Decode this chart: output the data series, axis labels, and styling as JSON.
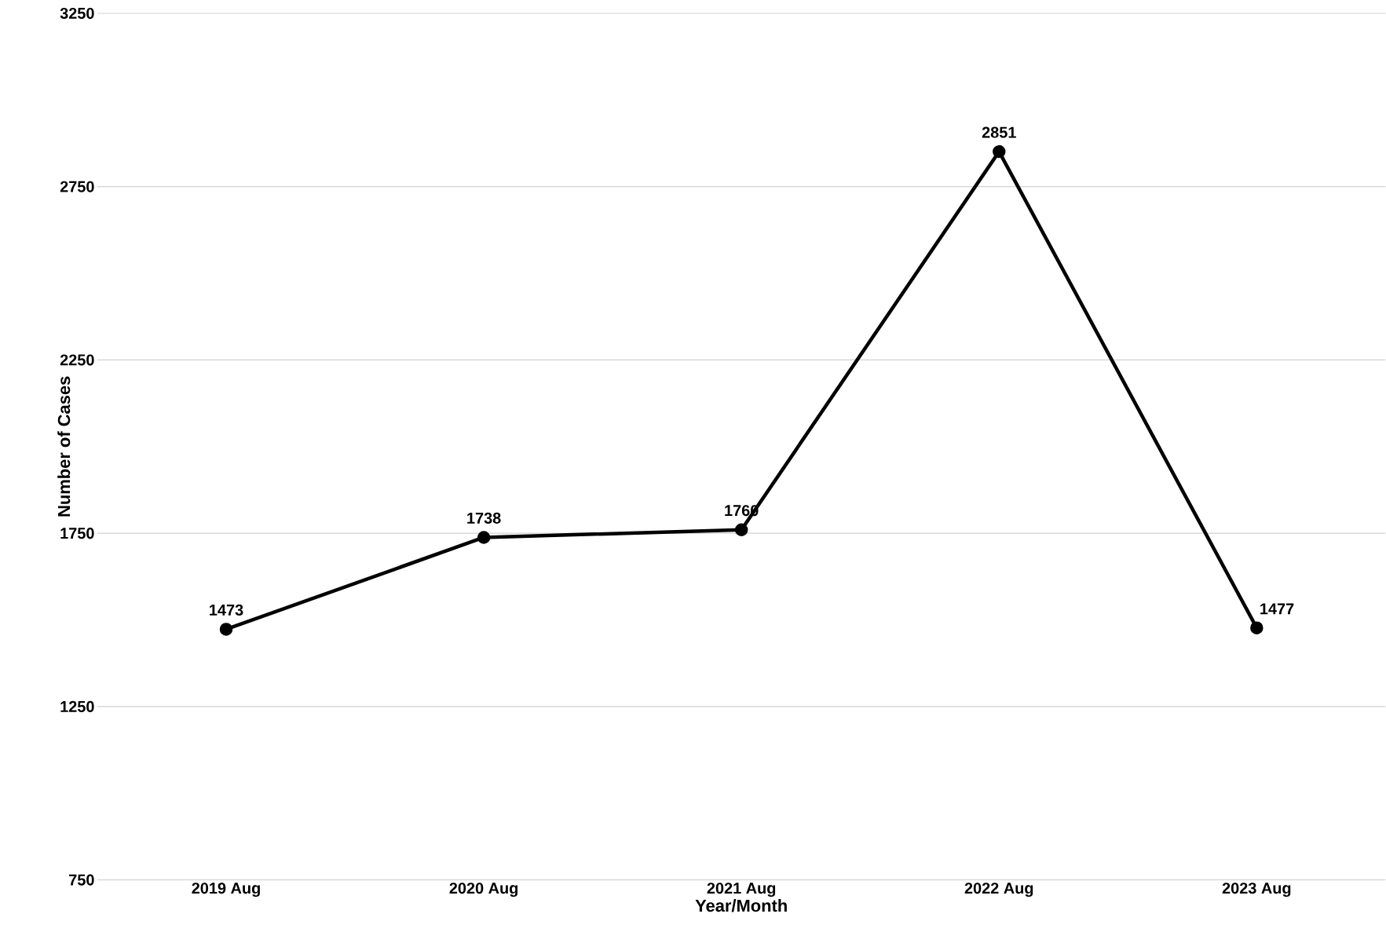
{
  "chart_data": {
    "type": "line",
    "xlabel": "Year/Month",
    "ylabel": "Number of Cases",
    "categories": [
      "2019 Aug",
      "2020 Aug",
      "2021 Aug",
      "2022 Aug",
      "2023 Aug"
    ],
    "values": [
      1473,
      1738,
      1760,
      2851,
      1477
    ],
    "value_labels": [
      "1473",
      "1738",
      "1760",
      "2851",
      "1477"
    ],
    "color": "#000000",
    "marker": "circle",
    "line_style": "solid",
    "ylim": [
      750,
      3250
    ],
    "yticks": [
      750,
      1250,
      1750,
      2250,
      2750,
      3250
    ],
    "grid": "y"
  }
}
